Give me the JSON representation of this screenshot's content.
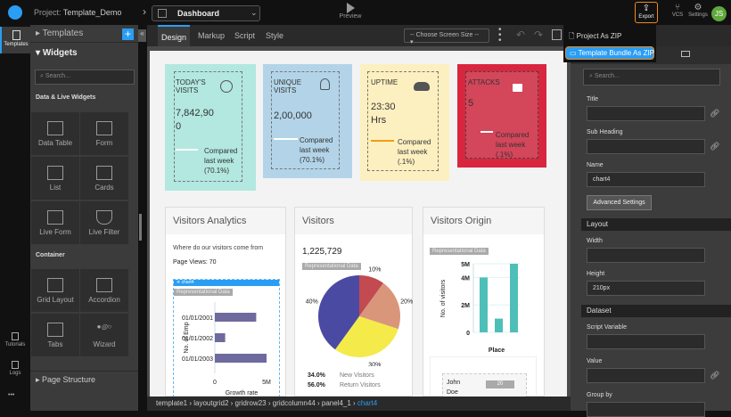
{
  "header": {
    "project_label": "Project:",
    "project_name": "Template_Demo",
    "page_select": "Dashboard",
    "preview": "Preview",
    "export": "Export",
    "vcs": "VCS",
    "settings": "Settings",
    "avatar": "JS"
  },
  "export_menu": {
    "items": [
      {
        "label": "Project As ZIP"
      },
      {
        "label": "Template Bundle As ZIP"
      }
    ]
  },
  "rail": {
    "templates": "Templates",
    "tutorials": "Tutorials",
    "logs": "Logs",
    "more": "•••"
  },
  "left_panel": {
    "templates": "Templates",
    "widgets": "Widgets",
    "search_placeholder": "Search...",
    "section1": "Data & Live Widgets",
    "data_widgets": [
      "Data Table",
      "Form",
      "List",
      "Cards",
      "Live Form",
      "Live Filter"
    ],
    "section2": "Container",
    "container_widgets": [
      "Grid Layout",
      "Accordion",
      "Tabs",
      "Wizard"
    ],
    "page_structure": "Page Structure"
  },
  "toolbar": {
    "tabs": [
      "Design",
      "Markup",
      "Script",
      "Style"
    ],
    "screen_size": "-- Choose Screen Size --"
  },
  "cards": [
    {
      "title": "TODAY'S VISITS",
      "value": "7,842,900",
      "compare": "Compared last week (70.1%)",
      "bg": "#b2e8df",
      "icon": "globe-icon"
    },
    {
      "title": "UNIQUE VISITS",
      "value": "2,00,000",
      "compare": "Compared last week (70.1%)",
      "bg": "#b3d4e8",
      "icon": "user-icon"
    },
    {
      "title": "UPTIME",
      "value": "23:30 Hrs",
      "compare": "Compared last week (.1%)",
      "bg": "#fdf0c0",
      "icon": "cloud-icon"
    },
    {
      "title": "ATTACKS",
      "value": "5",
      "compare": "Compared last week (.1%)",
      "bg": "#d9263f",
      "icon": "lock-icon"
    }
  ],
  "panels": {
    "analytics": {
      "title": "Visitors Analytics",
      "subtitle": "Where do our visitors come from",
      "page_views": "Page Views: 70",
      "widget_tag": "chart4",
      "rep": "Representational Data"
    },
    "visitors": {
      "title": "Visitors",
      "total": "1,225,729",
      "rep": "Representational Data",
      "new_pct": "34.0%",
      "new_label": "New Visitors",
      "ret_pct": "56.0%",
      "ret_label": "Return Visitors"
    },
    "origin": {
      "title": "Visitors Origin",
      "rep": "Representational Data",
      "table_name": "John Doe",
      "table_value": "20"
    }
  },
  "chart_data": [
    {
      "type": "bar",
      "orientation": "horizontal",
      "categories": [
        "01/01/2001",
        "01/01/2002",
        "01/01/2003"
      ],
      "values": [
        4000000,
        1000000,
        5000000
      ],
      "xlabel": "Growth rate",
      "ylabel": "No. of Emp",
      "ticks": [
        "0",
        "5M"
      ],
      "xlim": [
        0,
        5000000
      ],
      "color": "#6e6a9e"
    },
    {
      "type": "pie",
      "values": [
        10,
        20,
        30,
        40
      ],
      "labels": [
        "10%",
        "20%",
        "30%",
        "40%"
      ],
      "colors": [
        "#c24a50",
        "#d9967a",
        "#f4ea4a",
        "#4b4aa3"
      ]
    },
    {
      "type": "bar",
      "categories": [
        "",
        "",
        ""
      ],
      "values": [
        4000000,
        1000000,
        5000000
      ],
      "xlabel": "Place",
      "ylabel": "No. of visitors",
      "ticks": [
        "0",
        "2M",
        "4M",
        "5M"
      ],
      "ylim": [
        0,
        5000000
      ],
      "color": "#4dbfb8"
    }
  ],
  "breadcrumb": [
    "template1",
    "layoutgrid2",
    "gridrow23",
    "gridcolumn44",
    "panel4_1",
    "chart4"
  ],
  "right_panel": {
    "search_placeholder": "Search...",
    "title_label": "Title",
    "subheading_label": "Sub Heading",
    "name_label": "Name",
    "name_value": "chart4",
    "advanced": "Advanced Settings",
    "layout": "Layout",
    "width_label": "Width",
    "height_label": "Height",
    "height_value": "210px",
    "dataset": "Dataset",
    "script_var": "Script Variable",
    "value_label": "Value",
    "group_by": "Group by"
  }
}
